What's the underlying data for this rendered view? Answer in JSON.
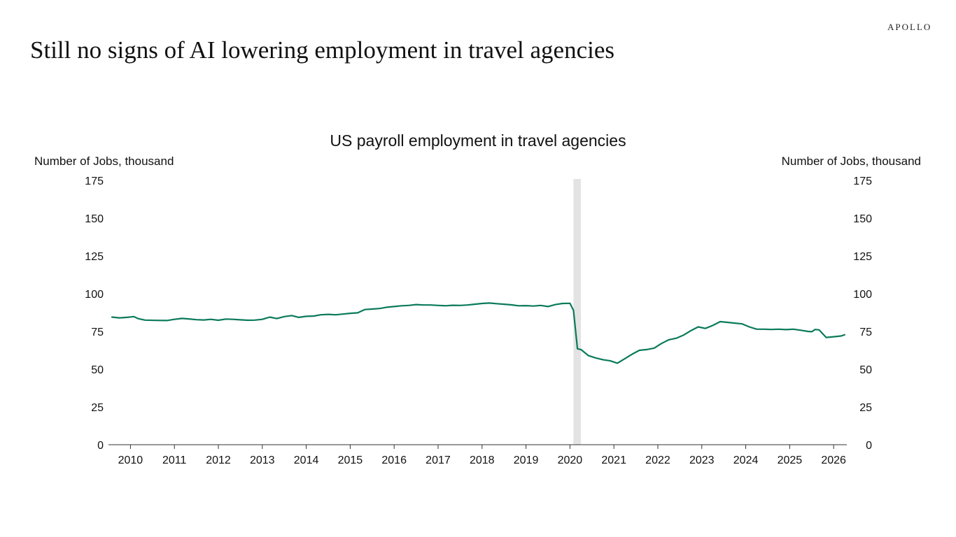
{
  "brand": "APOLLO",
  "headline": "Still no signs of AI lowering employment in travel agencies",
  "chart_data": {
    "type": "line",
    "title": "US payroll employment in travel agencies",
    "ylabel_left": "Number of Jobs, thousand",
    "ylabel_right": "Number of Jobs, thousand",
    "ylim": [
      0,
      175
    ],
    "yticks": [
      0,
      25,
      50,
      75,
      100,
      125,
      150,
      175
    ],
    "xlim": [
      2009.5,
      2026.3
    ],
    "x_tick_labels": [
      "2010",
      "2011",
      "2012",
      "2013",
      "2014",
      "2015",
      "2016",
      "2017",
      "2018",
      "2019",
      "2020",
      "2021",
      "2022",
      "2023",
      "2024",
      "2025",
      "2026"
    ],
    "recession_band": [
      2020.08,
      2020.25
    ],
    "grid": false,
    "line_color": "#0a7a5a",
    "band_color": "#e3e3e3",
    "series": [
      {
        "x": [
          2009.58,
          2009.75,
          2009.92,
          2010.08,
          2010.17,
          2010.33,
          2010.58,
          2010.83,
          2011.0,
          2011.17,
          2011.33,
          2011.5,
          2011.67,
          2011.83,
          2012.0,
          2012.17,
          2012.33,
          2012.5,
          2012.67,
          2012.83,
          2013.0,
          2013.17,
          2013.33,
          2013.5,
          2013.67,
          2013.83,
          2014.0,
          2014.17,
          2014.33,
          2014.5,
          2014.67,
          2014.83,
          2015.0,
          2015.17,
          2015.33,
          2015.5,
          2015.67,
          2015.83,
          2016.0,
          2016.17,
          2016.33,
          2016.5,
          2016.67,
          2016.83,
          2017.0,
          2017.17,
          2017.33,
          2017.5,
          2017.67,
          2017.83,
          2018.0,
          2018.17,
          2018.33,
          2018.5,
          2018.67,
          2018.83,
          2019.0,
          2019.17,
          2019.33,
          2019.5,
          2019.67,
          2019.83,
          2020.0,
          2020.08,
          2020.17,
          2020.25,
          2020.42,
          2020.58,
          2020.75,
          2020.92,
          2021.08,
          2021.25,
          2021.42,
          2021.58,
          2021.75,
          2021.92,
          2022.08,
          2022.25,
          2022.42,
          2022.58,
          2022.75,
          2022.92,
          2023.08,
          2023.25,
          2023.42,
          2023.58,
          2023.75,
          2023.92,
          2024.08,
          2024.25,
          2024.42,
          2024.58,
          2024.75,
          2024.92,
          2025.08,
          2025.25,
          2025.42,
          2025.5,
          2025.58,
          2025.67,
          2025.83,
          2026.0,
          2026.17,
          2026.25
        ],
        "values": [
          84.5,
          84.0,
          84.3,
          84.8,
          83.5,
          82.5,
          82.3,
          82.2,
          83.0,
          83.6,
          83.3,
          82.8,
          82.6,
          83.0,
          82.4,
          83.2,
          83.0,
          82.7,
          82.4,
          82.5,
          83.0,
          84.5,
          83.5,
          84.8,
          85.5,
          84.3,
          85.0,
          85.2,
          86.0,
          86.3,
          86.0,
          86.5,
          87.0,
          87.3,
          89.5,
          89.8,
          90.2,
          91.0,
          91.5,
          92.0,
          92.2,
          92.8,
          92.5,
          92.5,
          92.2,
          92.0,
          92.3,
          92.2,
          92.5,
          93.0,
          93.5,
          93.8,
          93.4,
          93.0,
          92.6,
          92.0,
          92.1,
          91.8,
          92.2,
          91.5,
          92.8,
          93.5,
          93.6,
          89.0,
          63.5,
          63.0,
          59.0,
          57.5,
          56.3,
          55.5,
          54.0,
          57.0,
          60.0,
          62.5,
          63.0,
          64.0,
          67.0,
          69.5,
          70.5,
          72.5,
          75.5,
          78.0,
          77.0,
          79.0,
          81.5,
          81.0,
          80.5,
          80.0,
          78.0,
          76.5,
          76.5,
          76.3,
          76.5,
          76.2,
          76.5,
          75.8,
          75.0,
          74.8,
          76.3,
          76.0,
          71.0,
          71.5,
          72.0,
          72.8
        ]
      }
    ]
  }
}
